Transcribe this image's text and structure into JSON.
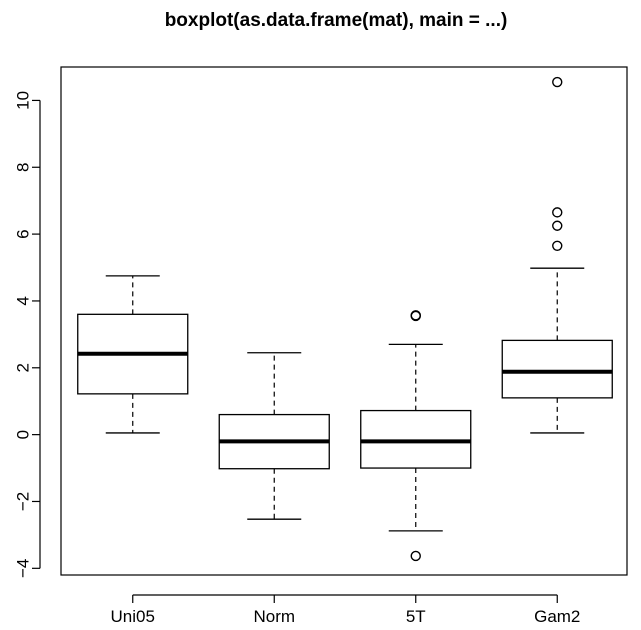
{
  "chart_data": {
    "type": "boxplot",
    "title": "boxplot(as.data.frame(mat), main = ...)",
    "xlabel": "",
    "ylabel": "",
    "categories": [
      "Uni05",
      "Norm",
      "5T",
      "Gam2"
    ],
    "y_ticks": [
      -4,
      -2,
      0,
      2,
      4,
      6,
      8,
      10
    ],
    "y_tick_labels": [
      "−4",
      "−2",
      "0",
      "2",
      "4",
      "6",
      "8",
      "10"
    ],
    "ylim": [
      -4.2,
      11.0
    ],
    "grid": false,
    "boxes": [
      {
        "name": "Uni05",
        "whisker_low": 0.05,
        "q1": 1.22,
        "median": 2.42,
        "q3": 3.6,
        "whisker_high": 4.75,
        "outliers": []
      },
      {
        "name": "Norm",
        "whisker_low": -2.53,
        "q1": -1.02,
        "median": -0.2,
        "q3": 0.6,
        "whisker_high": 2.45,
        "outliers": []
      },
      {
        "name": "5T",
        "whisker_low": -2.88,
        "q1": -1.0,
        "median": -0.2,
        "q3": 0.72,
        "whisker_high": 2.7,
        "outliers": [
          3.55,
          3.57,
          -3.63
        ]
      },
      {
        "name": "Gam2",
        "whisker_low": 0.05,
        "q1": 1.1,
        "median": 1.88,
        "q3": 2.82,
        "whisker_high": 4.98,
        "outliers": [
          5.65,
          6.25,
          6.65,
          10.55
        ]
      }
    ]
  }
}
